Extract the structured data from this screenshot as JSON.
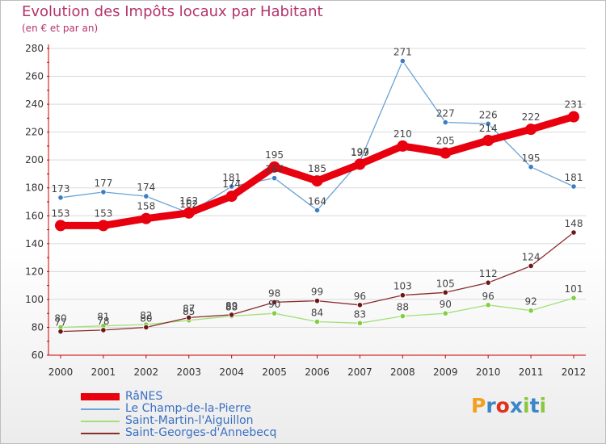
{
  "title": "Evolution des Impôts locaux par Habitant",
  "subtitle": "(en € et par an)",
  "logo_text": "Proxiti",
  "colors": {
    "title": "#b5336b",
    "axis": "#cc0000",
    "grid": "#d9d9d9",
    "logo": [
      "#f2a01e",
      "#3a87c8",
      "#e0301e",
      "#3a87c8",
      "#8cc63f",
      "#3a87c8",
      "#8cc63f"
    ]
  },
  "chart_data": {
    "type": "line",
    "title": "Evolution des Impôts locaux par Habitant",
    "subtitle": "(en € et par an)",
    "x": [
      "2000",
      "2001",
      "2002",
      "2003",
      "2004",
      "2005",
      "2006",
      "2007",
      "2008",
      "2009",
      "2010",
      "2011",
      "2012"
    ],
    "ylim": [
      60,
      280
    ],
    "yticks": [
      60,
      80,
      100,
      120,
      140,
      160,
      180,
      200,
      220,
      240,
      260,
      280
    ],
    "grid": true,
    "legend_position": "bottom-left",
    "series": [
      {
        "name": "RâNES",
        "color": "#e8000f",
        "emphasis": true,
        "values": [
          153,
          153,
          158,
          162,
          174,
          195,
          185,
          197,
          210,
          205,
          214,
          222,
          231
        ],
        "labels": [
          "153",
          "153",
          "158",
          "162",
          "174",
          "195",
          "185",
          "197",
          "210",
          "205",
          "214",
          "222",
          "231"
        ]
      },
      {
        "name": "Le Champ-de-la-Pierre",
        "color": "#6aa3d5",
        "marker": "#3b7dc4",
        "values": [
          173,
          177,
          174,
          162,
          181,
          187,
          164,
          199,
          271,
          227,
          226,
          195,
          181
        ],
        "labels": [
          "173",
          "177",
          "174",
          "162",
          "181",
          "187",
          "164",
          "199",
          "271",
          "227",
          "226",
          "195",
          "181"
        ]
      },
      {
        "name": "Saint-Martin-l'Aiguillon",
        "color": "#a3e07a",
        "marker": "#7fcf3f",
        "values": [
          80,
          81,
          82,
          85,
          88,
          90,
          84,
          83,
          88,
          90,
          96,
          92,
          101
        ],
        "labels": [
          "80",
          "81",
          "82",
          "85",
          "88",
          "90",
          "84",
          "83",
          "88",
          "90",
          "96",
          "92",
          "101"
        ]
      },
      {
        "name": "Saint-Georges-d'Annebecq",
        "color": "#8a2c2c",
        "marker": "#6b1818",
        "values": [
          77,
          78,
          80,
          87,
          89,
          98,
          99,
          96,
          103,
          105,
          112,
          124,
          148
        ],
        "labels": [
          "77",
          "78",
          "80",
          "87",
          "89",
          "98",
          "99",
          "96",
          "103",
          "105",
          "112",
          "124",
          "148"
        ]
      }
    ]
  }
}
